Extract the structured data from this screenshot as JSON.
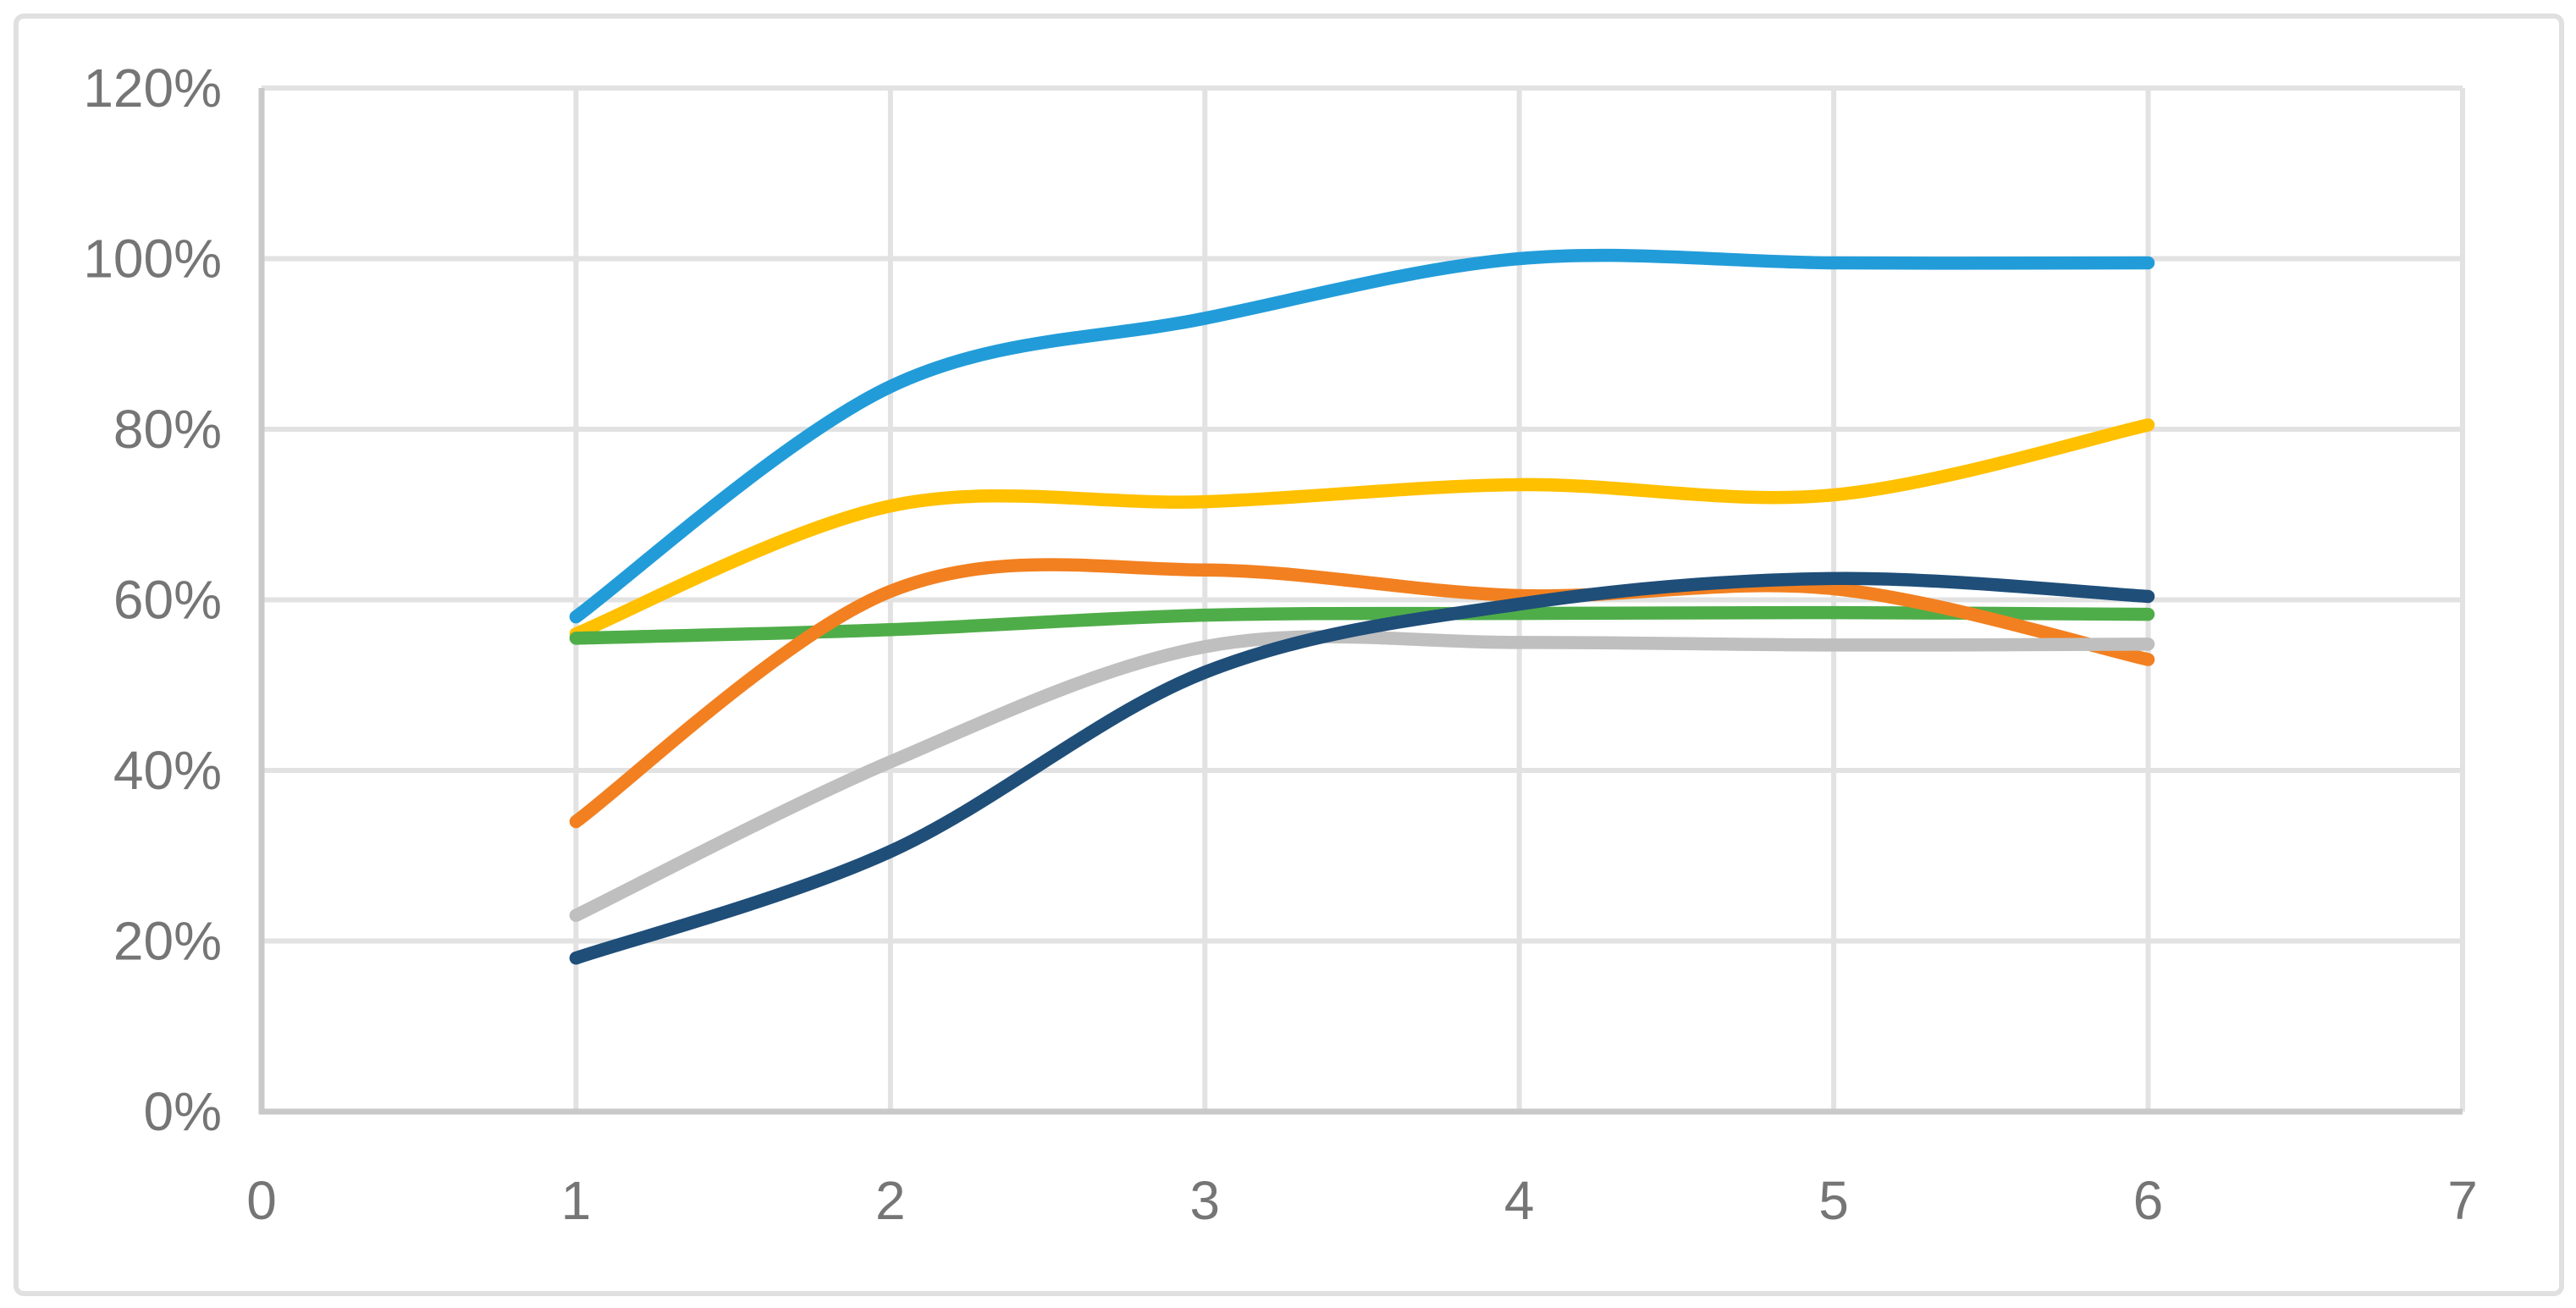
{
  "figure": {
    "background_color": "#FFFFFF",
    "border_color": "#E0E0E0",
    "title": "",
    "legend_visible": false
  },
  "chart_data": {
    "type": "line",
    "title": "",
    "xlabel": "",
    "ylabel": "",
    "xlim": [
      0,
      7
    ],
    "ylim": [
      0,
      120
    ],
    "grid": true,
    "legend_position": "none",
    "smooth": true,
    "x_tick_labels": [
      "0",
      "1",
      "2",
      "3",
      "4",
      "5",
      "6",
      "7"
    ],
    "y_ticks": [
      {
        "value": 0,
        "label": "0%"
      },
      {
        "value": 20,
        "label": "20%"
      },
      {
        "value": 40,
        "label": "40%"
      },
      {
        "value": 60,
        "label": "60%"
      },
      {
        "value": 80,
        "label": "80%"
      },
      {
        "value": 100,
        "label": "100%"
      },
      {
        "value": 120,
        "label": "120%"
      }
    ],
    "x": [
      1,
      2,
      3,
      4,
      5,
      6
    ],
    "series": [
      {
        "name": "light-blue-series",
        "color": "#229CD9",
        "values": [
          58,
          85,
          93,
          100,
          99.5,
          99.5
        ]
      },
      {
        "name": "gold-series",
        "color": "#FFC000",
        "values": [
          56,
          71,
          71.5,
          73.5,
          72.3,
          80.5
        ]
      },
      {
        "name": "green-series",
        "color": "#4FAD49",
        "values": [
          55.5,
          56.5,
          58.2,
          58.4,
          58.5,
          58.3
        ]
      },
      {
        "name": "orange-series",
        "color": "#F28020",
        "values": [
          34,
          61,
          63.5,
          60.5,
          61.3,
          53
        ]
      },
      {
        "name": "gray-series",
        "color": "#BFBFBF",
        "values": [
          23,
          41,
          54.5,
          55,
          54.7,
          54.8
        ]
      },
      {
        "name": "dark-navy-series",
        "color": "#1F4E79",
        "values": [
          18,
          30.5,
          51.5,
          59.5,
          62.5,
          60.4
        ]
      }
    ],
    "styles": {
      "gridline_color": "#E2E2E2",
      "axis_line_color": "#C9C9C9",
      "tick_label_color": "#757575"
    }
  }
}
